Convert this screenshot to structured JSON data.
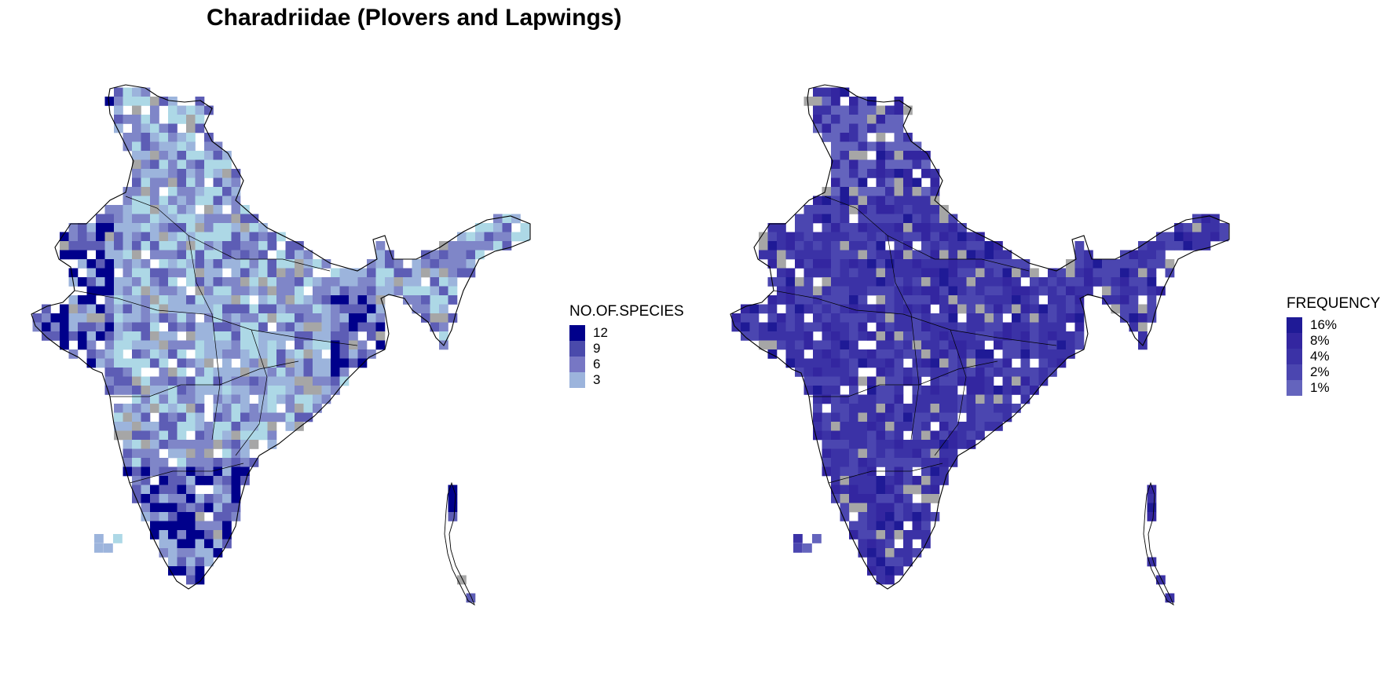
{
  "title": "Charadriidae (Plovers and Lapwings)",
  "left_panel": {
    "legend_title": "NO.OF.SPECIES",
    "legend": [
      {
        "label": "12",
        "color": "#00008b"
      },
      {
        "label": "9",
        "color": "#4a4aab"
      },
      {
        "label": "6",
        "color": "#7777c4"
      },
      {
        "label": "3",
        "color": "#9cb4dc"
      }
    ],
    "cell_palette": [
      "#add8e6",
      "#9cb4dc",
      "#7f86c8",
      "#5d5db5",
      "#00008b"
    ],
    "no_data_color": "#a6a6a6"
  },
  "right_panel": {
    "legend_title": "FREQUENCY",
    "legend": [
      {
        "label": "16%",
        "color": "#1f1a96"
      },
      {
        "label": "8%",
        "color": "#3326a0"
      },
      {
        "label": "4%",
        "color": "#3b32a6"
      },
      {
        "label": "2%",
        "color": "#4b46b0"
      },
      {
        "label": "1%",
        "color": "#6464bd"
      }
    ],
    "cell_palette": [
      "#6464bd",
      "#4b46b0",
      "#3b32a6",
      "#3326a0",
      "#1f1a96"
    ],
    "no_data_color": "#a6a6a6"
  },
  "chart_data": {
    "type": "heatmap",
    "region": "India",
    "panels": [
      {
        "legend_title": "NO.OF.SPECIES",
        "legend_values": [
          12,
          9,
          6,
          3
        ]
      },
      {
        "legend_title": "FREQUENCY",
        "legend_values": [
          "16%",
          "8%",
          "4%",
          "2%",
          "1%"
        ]
      }
    ]
  }
}
